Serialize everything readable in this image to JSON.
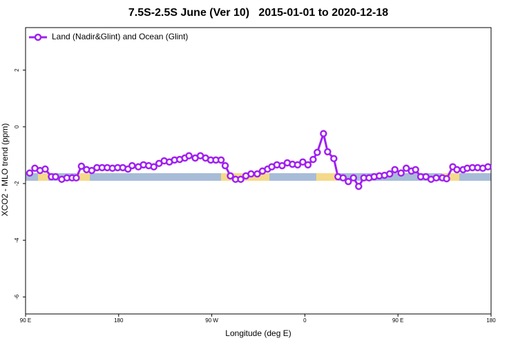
{
  "chart_data": {
    "type": "line",
    "title": "7.5S-2.5S June (Ver 10)   2015-01-01 to 2020-12-18",
    "xlabel": "Longitude (deg E)",
    "ylabel": "XCO2 - MLO trend (ppm)",
    "xlim": [
      90,
      540
    ],
    "ylim": [
      -6.6,
      3.5
    ],
    "xticks": [
      {
        "value": 90,
        "label": "90 E"
      },
      180,
      {
        "value": 270,
        "label": "90 W"
      },
      {
        "value": 360,
        "label": "0"
      },
      {
        "value": 450,
        "label": "90 E"
      },
      {
        "value": 540,
        "label": "180"
      }
    ],
    "yticks": [
      -6,
      -4,
      -2,
      0,
      2
    ],
    "legend": "top-left",
    "x": [
      94,
      99,
      104,
      109,
      115,
      119,
      125,
      130,
      135,
      139,
      144,
      149,
      154,
      159,
      164,
      169,
      174,
      179,
      184,
      189,
      193,
      199,
      204,
      209,
      214,
      219,
      224,
      229,
      234,
      239,
      244,
      248,
      254,
      259,
      264,
      269,
      274,
      279,
      283,
      288,
      293,
      298,
      303,
      308,
      314,
      319,
      324,
      328,
      333,
      338,
      343,
      348,
      353,
      358,
      363,
      368,
      372,
      378,
      382,
      388,
      392,
      397,
      402,
      407,
      412,
      417,
      422,
      427,
      432,
      437,
      442,
      447,
      453,
      458,
      463,
      467,
      472,
      477,
      482,
      487,
      493,
      497,
      503,
      507,
      513,
      517,
      522,
      527,
      532,
      537
    ],
    "series": [
      {
        "name": "Land (Nadir&Glint) and Ocean (Glint)",
        "color": "#a020f0",
        "values": [
          -1.63,
          -1.46,
          -1.54,
          -1.49,
          -1.76,
          -1.76,
          -1.85,
          -1.8,
          -1.8,
          -1.8,
          -1.39,
          -1.51,
          -1.54,
          -1.44,
          -1.44,
          -1.44,
          -1.46,
          -1.44,
          -1.44,
          -1.49,
          -1.37,
          -1.41,
          -1.34,
          -1.37,
          -1.41,
          -1.29,
          -1.2,
          -1.24,
          -1.17,
          -1.15,
          -1.1,
          -1.02,
          -1.1,
          -1.02,
          -1.1,
          -1.17,
          -1.17,
          -1.17,
          -1.37,
          -1.73,
          -1.85,
          -1.85,
          -1.73,
          -1.66,
          -1.66,
          -1.56,
          -1.49,
          -1.41,
          -1.34,
          -1.37,
          -1.27,
          -1.32,
          -1.34,
          -1.24,
          -1.34,
          -1.15,
          -0.9,
          -0.24,
          -0.88,
          -1.12,
          -1.76,
          -1.8,
          -1.93,
          -1.8,
          -2.1,
          -1.8,
          -1.8,
          -1.76,
          -1.73,
          -1.71,
          -1.66,
          -1.51,
          -1.63,
          -1.46,
          -1.56,
          -1.51,
          -1.76,
          -1.76,
          -1.85,
          -1.8,
          -1.8,
          -1.83,
          -1.41,
          -1.51,
          -1.51,
          -1.46,
          -1.44,
          -1.44,
          -1.46,
          -1.41
        ]
      }
    ]
  }
}
